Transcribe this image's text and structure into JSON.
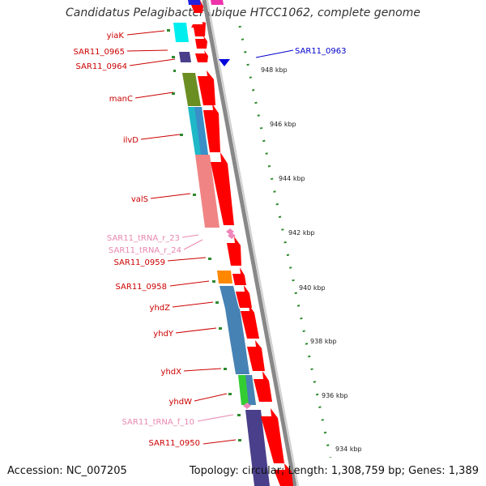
{
  "title": "Candidatus Pelagibacter ubique HTCC1062, complete genome",
  "footer": {
    "accession": "Accession: NC_007205",
    "topology": "Topology: circular; Length: 1,308,759 bp; Genes: 1,389"
  },
  "colors": {
    "backbone": "#888888",
    "cds_arrow": "#ff0000",
    "label_default": "#cc0000",
    "label_trna": "#e888b0",
    "label_reverse": "#0000cc",
    "tick": "#2d8a2d"
  },
  "kbp_ticks": [
    "948 kbp",
    "946 kbp",
    "944 kbp",
    "942 kbp",
    "940 kbp",
    "938 kbp",
    "936 kbp",
    "934 kbp"
  ],
  "left_labels": [
    "yiaK",
    "SAR11_0965",
    "SAR11_0964",
    "manC",
    "ilvD",
    "valS",
    "SAR11_tRNA_r_23",
    "SAR11_tRNA_r_24",
    "SAR11_0959",
    "SAR11_0958",
    "yhdZ",
    "yhdY",
    "yhdX",
    "yhdW",
    "SAR11_tRNA_f_10",
    "SAR11_0950"
  ],
  "right_labels": [
    "SAR11_0963"
  ]
}
